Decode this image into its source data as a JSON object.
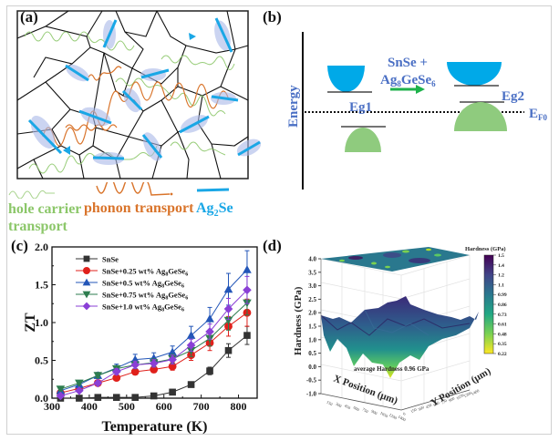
{
  "figure": {
    "panels": {
      "a": {
        "label": "(a)",
        "legend": {
          "hole": {
            "line1": "hole carrier",
            "line2": "transport",
            "color": "#8cc76a"
          },
          "phonon": {
            "text": "phonon transport",
            "color": "#d9742b"
          },
          "ag2se": {
            "main": "Ag",
            "sub": "2",
            "tail": "Se",
            "color": "#1aa7e6"
          }
        }
      },
      "b": {
        "label": "(b)",
        "y_axis_label": "Energy",
        "process": {
          "line1": "SnSe +",
          "line2_main": "Ag",
          "line2_sub1": "8",
          "line2_mid": "GeSe",
          "line2_sub2": "6"
        },
        "eg1": "Eg1",
        "eg2": "Eg2",
        "fermi": {
          "main": "E",
          "sub": "F0"
        },
        "colors": {
          "conduction": "#00a9e8",
          "valence": "#8fcb7e",
          "text": "#4a6fc4",
          "arrow": "#1db24b"
        }
      },
      "c": {
        "label": "(c)"
      },
      "d": {
        "label": "(d)",
        "annotation": "average Hardness 0.96 GPa",
        "z_label": "Hardness (GPa)",
        "x_label": "X Position (μm)",
        "y_label": "Y Position (μm)",
        "z_ticks": [
          "4.0",
          "3.5",
          "3.0",
          "2.5",
          "2.0",
          "1.5",
          "1.0",
          "0.5",
          "0.0",
          "-0.5",
          "-1.0"
        ],
        "x_ticks": [
          "150",
          "300",
          "450",
          "600",
          "750",
          "900",
          "1050",
          "1200",
          "1400"
        ],
        "y_ticks": [
          "0",
          "150",
          "300",
          "450",
          "600",
          "750",
          "900",
          "1050",
          "1200",
          "1400"
        ],
        "colorbar": {
          "title": "Hardness (GPa)",
          "ticks": [
            "1.5",
            "1.4",
            "1.2",
            "1.1",
            "0.99",
            "0.86",
            "0.73",
            "0.61",
            "0.48",
            "0.35",
            "0.22"
          ]
        }
      }
    }
  },
  "chart_data": [
    {
      "type": "line",
      "panel": "c",
      "title": "",
      "xlabel": "Temperature (K)",
      "ylabel": "ZT",
      "xlim": [
        300,
        850
      ],
      "ylim": [
        0,
        2.0
      ],
      "x_ticks": [
        300,
        400,
        500,
        600,
        700,
        800
      ],
      "y_ticks": [
        0.0,
        0.5,
        1.0,
        1.5,
        2.0
      ],
      "x_tick_labels": [
        "300",
        "400",
        "500",
        "600",
        "700",
        "800"
      ],
      "y_tick_labels": [
        "0.0",
        "0.5",
        "1.0",
        "1.5",
        "2.0"
      ],
      "legend_position": "top-left",
      "x": [
        323,
        373,
        423,
        473,
        523,
        573,
        623,
        673,
        723,
        773,
        823
      ],
      "series": [
        {
          "name": "SnSe",
          "legend_main": "SnSe",
          "legend_sub": "",
          "legend_tail": "",
          "color": "#333333",
          "marker": "square",
          "values": [
            0.0,
            0.0,
            0.01,
            0.01,
            0.01,
            0.03,
            0.08,
            0.18,
            0.36,
            0.63,
            0.83
          ],
          "errors": [
            0,
            0,
            0,
            0,
            0,
            0.01,
            0.01,
            0.02,
            0.05,
            0.09,
            0.12
          ]
        },
        {
          "name": "SnSe+0.25 wt% Ag8GeSe6",
          "legend_main": "SnSe+0.25 wt% Ag",
          "legend_sub": "8",
          "legend_tail": "GeSe",
          "legend_sub2": "6",
          "color": "#e0201b",
          "marker": "circle",
          "values": [
            0.07,
            0.13,
            0.2,
            0.27,
            0.35,
            0.38,
            0.42,
            0.57,
            0.73,
            0.95,
            1.13
          ],
          "errors": [
            0.01,
            0.01,
            0.02,
            0.03,
            0.04,
            0.04,
            0.05,
            0.07,
            0.1,
            0.13,
            0.18
          ]
        },
        {
          "name": "SnSe+0.5 wt% Ag8GeSe6",
          "legend_main": "SnSe+0.5 wt% Ag",
          "legend_sub": "8",
          "legend_tail": "GeSe",
          "legend_sub2": "6",
          "color": "#2356b8",
          "marker": "triangle-up",
          "values": [
            0.1,
            0.18,
            0.3,
            0.4,
            0.51,
            0.53,
            0.61,
            0.83,
            1.05,
            1.44,
            1.7
          ],
          "errors": [
            0.02,
            0.03,
            0.04,
            0.05,
            0.07,
            0.07,
            0.08,
            0.12,
            0.15,
            0.21,
            0.25
          ]
        },
        {
          "name": "SnSe+0.75 wt% Ag8GeSe6",
          "legend_main": "SnSe+0.75 wt% Ag",
          "legend_sub": "8",
          "legend_tail": "GeSe",
          "legend_sub2": "6",
          "color": "#2e7d4f",
          "marker": "triangle-down",
          "values": [
            0.12,
            0.2,
            0.3,
            0.39,
            0.44,
            0.47,
            0.52,
            0.63,
            0.79,
            1.03,
            1.26
          ],
          "errors": [
            0.02,
            0.02,
            0.03,
            0.04,
            0.05,
            0.05,
            0.06,
            0.08,
            0.1,
            0.13,
            0.16
          ]
        },
        {
          "name": "SnSe+1.0 wt% Ag8GeSe6",
          "legend_main": "SnSe+1.0 wt% Ag",
          "legend_sub": "8",
          "legend_tail": "GeSe",
          "legend_sub2": "6",
          "color": "#8a3fd6",
          "marker": "diamond",
          "values": [
            0.03,
            0.1,
            0.2,
            0.35,
            0.44,
            0.46,
            0.51,
            0.7,
            0.88,
            1.18,
            1.43
          ],
          "errors": [
            0.01,
            0.02,
            0.03,
            0.04,
            0.05,
            0.05,
            0.06,
            0.08,
            0.1,
            0.14,
            0.18
          ]
        }
      ]
    },
    {
      "type": "heatmap",
      "panel": "d",
      "title": "",
      "xlabel": "X Position (μm)",
      "ylabel": "Y Position (μm)",
      "zlabel": "Hardness (GPa)",
      "zlim": [
        -1.0,
        4.0
      ],
      "color_range": [
        0.22,
        1.5
      ],
      "colormap": "viridis",
      "average": 0.96
    }
  ]
}
